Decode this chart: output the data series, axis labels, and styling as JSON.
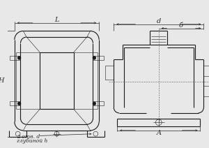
{
  "bg_color": "#e8e8e8",
  "line_color": "#1a1a1a",
  "dim_color": "#2a2a2a",
  "annotation_text_1": "2 отв. d",
  "annotation_text_2": "глубиной h",
  "dim_L": "L",
  "dim_H": "H",
  "dim_d_top": "d",
  "dim_b": "б",
  "dim_A": "A",
  "figsize": [
    3.0,
    2.12
  ],
  "dpi": 100
}
